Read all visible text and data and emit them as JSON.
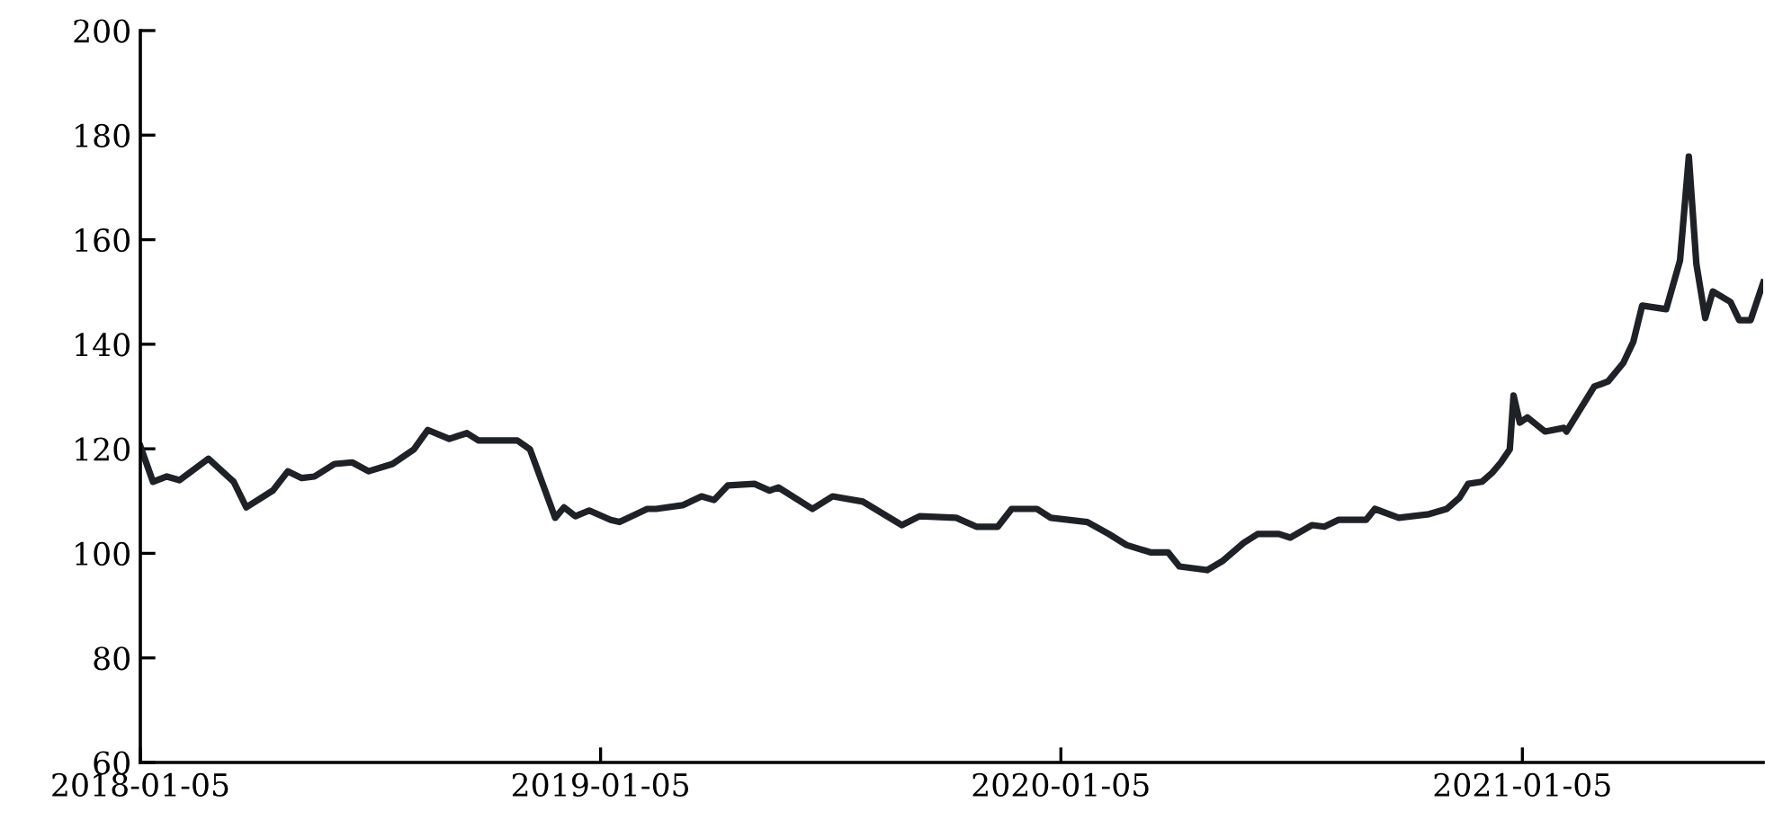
{
  "chart_data": {
    "type": "line",
    "x": [
      "2018-01-05",
      "2018-01-15",
      "2018-01-26",
      "2018-02-05",
      "2018-02-28",
      "2018-03-20",
      "2018-03-30",
      "2018-04-20",
      "2018-05-02",
      "2018-05-13",
      "2018-05-23",
      "2018-06-08",
      "2018-06-22",
      "2018-07-05",
      "2018-07-24",
      "2018-08-10",
      "2018-08-21",
      "2018-09-07",
      "2018-09-21",
      "2018-09-30",
      "2018-10-31",
      "2018-11-10",
      "2018-11-30",
      "2018-12-07",
      "2018-12-16",
      "2018-12-27",
      "2019-01-13",
      "2019-01-20",
      "2019-02-11",
      "2019-02-18",
      "2019-03-11",
      "2019-03-26",
      "2019-04-05",
      "2019-04-16",
      "2019-05-07",
      "2019-05-19",
      "2019-05-26",
      "2019-06-22",
      "2019-07-08",
      "2019-08-01",
      "2019-09-01",
      "2019-09-15",
      "2019-10-14",
      "2019-10-30",
      "2019-11-16",
      "2019-11-27",
      "2019-12-17",
      "2019-12-28",
      "2020-01-26",
      "2020-02-12",
      "2020-02-26",
      "2020-03-16",
      "2020-03-30",
      "2020-04-08",
      "2020-04-30",
      "2020-05-12",
      "2020-05-29",
      "2020-06-09",
      "2020-06-26",
      "2020-07-05",
      "2020-07-22",
      "2020-08-01",
      "2020-08-12",
      "2020-09-03",
      "2020-09-10",
      "2020-09-29",
      "2020-10-23",
      "2020-11-06",
      "2020-11-16",
      "2020-11-23",
      "2020-12-04",
      "2020-12-12",
      "2020-12-19",
      "2020-12-26",
      "2020-12-29",
      "2021-01-03",
      "2021-01-09",
      "2021-01-23",
      "2021-02-07",
      "2021-02-09",
      "2021-03-03",
      "2021-03-14",
      "2021-03-26",
      "2021-04-03",
      "2021-04-10",
      "2021-04-29",
      "2021-05-10",
      "2021-05-17",
      "2021-05-23",
      "2021-05-30",
      "2021-06-05",
      "2021-06-19",
      "2021-06-26",
      "2021-07-05",
      "2021-07-15"
    ],
    "series": [
      {
        "color": "#1e2126",
        "values": [
          120.5,
          113.7,
          114.7,
          114,
          118.1,
          113.7,
          108.8,
          112,
          115.7,
          114.4,
          114.7,
          117.1,
          117.4,
          115.7,
          117.1,
          119.9,
          123.6,
          121.9,
          123,
          121.6,
          121.6,
          119.9,
          106.8,
          108.8,
          107.1,
          108.2,
          106.4,
          106,
          108.5,
          108.5,
          109.2,
          110.9,
          110.2,
          113,
          113.3,
          112,
          112.6,
          108.5,
          110.9,
          109.9,
          105.4,
          107.1,
          106.8,
          105.1,
          105.1,
          108.5,
          108.5,
          106.8,
          106,
          103.7,
          101.6,
          100.2,
          100.2,
          97.5,
          96.8,
          98.5,
          102,
          103.7,
          103.7,
          103,
          105.4,
          105.1,
          106.4,
          106.4,
          108.5,
          106.8,
          107.5,
          108.5,
          110.6,
          113.3,
          113.7,
          115.4,
          117.4,
          119.9,
          130.2,
          125,
          126,
          123.3,
          124,
          123.3,
          131.9,
          132.9,
          136.4,
          140.5,
          147.4,
          146.7,
          156,
          175.9,
          155.3,
          145,
          150.1,
          148.1,
          144.6,
          144.6,
          151.8
        ]
      }
    ],
    "xlim": [
      "2018-01-05",
      "2021-07-15"
    ],
    "xticks": [
      "2018-01-05",
      "2019-01-05",
      "2020-01-05",
      "2021-01-05"
    ],
    "ylim": [
      60,
      200
    ],
    "yticks": [
      60,
      80,
      100,
      120,
      140,
      160,
      180,
      200
    ],
    "marker": "none",
    "line_style": "solid"
  }
}
